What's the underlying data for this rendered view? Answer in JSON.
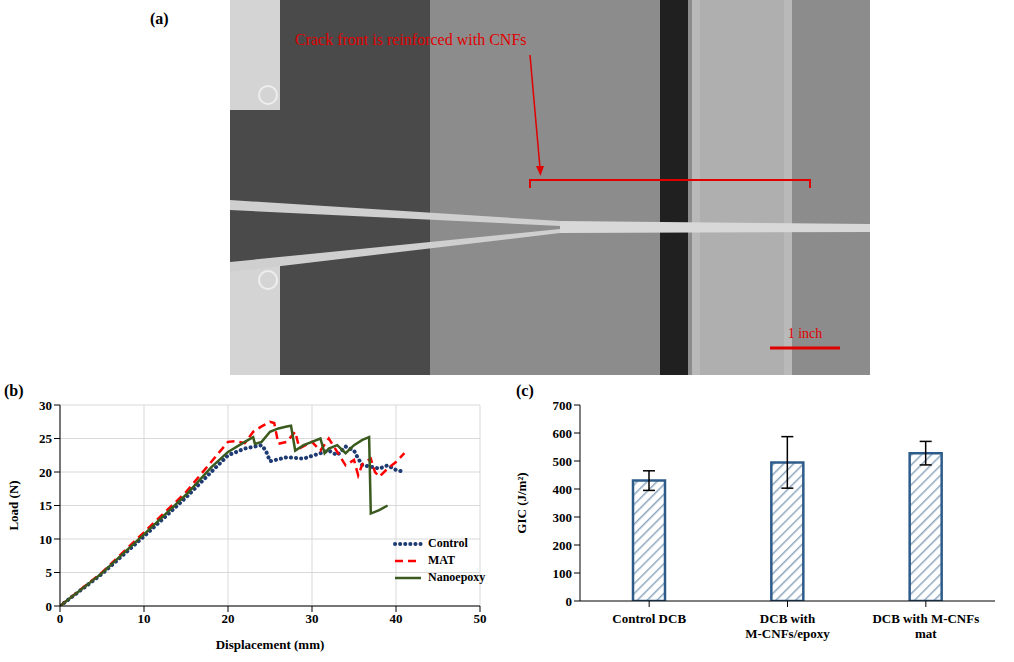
{
  "photo": {
    "panel": "(a)",
    "annotation": "Crack front is reinforced with CNFs",
    "scale_bar": "1 inch"
  },
  "chart_data": [
    {
      "type": "line",
      "panel": "(b)",
      "xlabel": "Displacement (mm)",
      "ylabel": "Load (N)",
      "xlim": [
        0,
        50
      ],
      "xticks": [
        0,
        10,
        20,
        30,
        40,
        50
      ],
      "ylim": [
        0,
        30
      ],
      "yticks": [
        0,
        5,
        10,
        15,
        20,
        25,
        30
      ],
      "grid": true,
      "legend": "lower right",
      "series": [
        {
          "name": "Control",
          "color": "#1f3b73",
          "line_style": "dotted",
          "x": [
            0,
            5,
            10,
            15,
            18,
            20,
            22,
            24,
            24.5,
            25,
            27,
            29,
            30,
            31,
            32,
            33,
            34,
            35,
            35.5,
            36,
            37,
            38,
            39,
            40,
            41
          ],
          "values": [
            0,
            4.8,
            10.4,
            16.2,
            20,
            22.5,
            23.5,
            24,
            23.2,
            21.6,
            22.2,
            22,
            22.4,
            22.8,
            23.2,
            22.5,
            23.8,
            23.2,
            22,
            21,
            20.8,
            20.5,
            21,
            20.3,
            20
          ]
        },
        {
          "name": "MAT",
          "color": "#ff0000",
          "line_style": "dashed",
          "x": [
            0,
            5,
            10,
            15,
            19,
            20,
            21,
            22,
            23,
            24,
            25,
            25.5,
            26,
            27,
            28,
            28.5,
            30,
            31,
            32,
            33,
            34,
            35,
            35.5,
            36,
            37,
            37.5,
            38,
            39,
            40,
            41
          ],
          "values": [
            0,
            5,
            11,
            17,
            23,
            24.5,
            24.6,
            24.3,
            26,
            26.8,
            27.5,
            27.3,
            24.2,
            24.5,
            26,
            23.5,
            24.5,
            23.2,
            25,
            23,
            21,
            21.8,
            19.5,
            21.2,
            22,
            20,
            19.3,
            20.5,
            21.5,
            22.8
          ]
        },
        {
          "name": "Nanoepoxy",
          "color": "#3a5a1e",
          "line_style": "solid",
          "x": [
            0,
            5,
            10,
            15,
            18,
            20,
            22,
            23,
            23.2,
            24,
            25,
            26,
            27,
            27.5,
            28,
            29,
            30,
            31,
            31.5,
            32,
            33,
            34,
            35,
            36,
            36.8,
            37,
            38,
            39
          ],
          "values": [
            0,
            4.9,
            10.7,
            16.6,
            20.7,
            23,
            24.5,
            25.2,
            24.2,
            24.5,
            26,
            26.5,
            26.8,
            26.9,
            23.2,
            24,
            24.5,
            25,
            22.8,
            23.5,
            24,
            22.8,
            24,
            24.8,
            25.2,
            13.8,
            14.3,
            15
          ]
        }
      ]
    },
    {
      "type": "bar",
      "panel": "(c)",
      "ylabel": "GIC (J/m²)",
      "categories": [
        "Control DCB",
        "DCB with M-CNFs/epoxy",
        "DCB with M-CNFs mat"
      ],
      "values": [
        430,
        495,
        528
      ],
      "errors": [
        35,
        92,
        42
      ],
      "color": "#2e5c8a",
      "ylim": [
        0,
        700
      ],
      "yticks": [
        0,
        100,
        200,
        300,
        400,
        500,
        600,
        700
      ],
      "grid": false
    }
  ]
}
